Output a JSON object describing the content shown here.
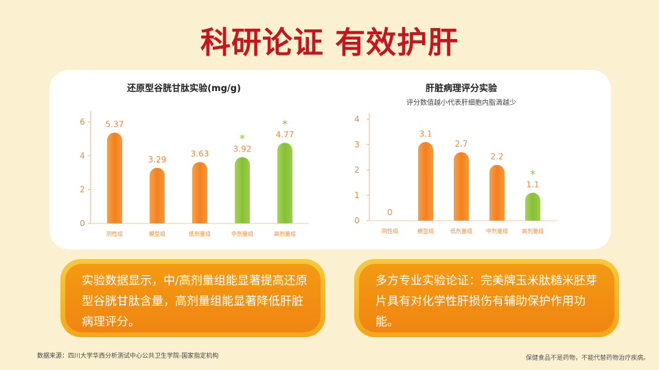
{
  "page": {
    "title": "科研论证 有效护肝",
    "note_left": "实验数据显示，中/高剂量组能显著提高还原型谷胱甘肽含量，高剂量组能显著降低肝脏病理评分。",
    "note_right": "多方专业实验论证：完美牌玉米肽糙米胚芽片具有对化学性肝损伤有辅助保护作用功能。",
    "footer_source": "数据来源：四川大学华西分析测试中心公共卫生学院-国家指定机构",
    "footer_disclaimer": "保健食品不是药物，不能代替药物治疗疾病。"
  },
  "chart_data": [
    {
      "type": "bar",
      "title": "还原型谷胱甘肽实验(mg/g)",
      "subtitle": "",
      "categories": [
        "阴性组",
        "模型组",
        "低剂量组",
        "中剂量组",
        "高剂量组"
      ],
      "values": [
        5.37,
        3.29,
        3.63,
        3.92,
        4.77
      ],
      "value_labels": [
        "5.37",
        "3.29",
        "3.63",
        "3.92",
        "4.77"
      ],
      "significant": [
        false,
        false,
        false,
        true,
        true
      ],
      "marker": "*",
      "yticks": [
        0,
        2,
        4,
        6
      ],
      "ylim": [
        0,
        6
      ],
      "colors": {
        "normal": "#f58a2d",
        "highlight": "#8cc63f"
      },
      "highlight": [
        false,
        false,
        false,
        true,
        true
      ]
    },
    {
      "type": "bar",
      "title": "肝脏病理评分实验",
      "subtitle": "评分数值越小代表肝细胞内脂滴越少",
      "categories": [
        "阴性组",
        "模型组",
        "低剂量组",
        "中剂量组",
        "高剂量组"
      ],
      "values": [
        0,
        3.1,
        2.7,
        2.2,
        1.1
      ],
      "value_labels": [
        "0",
        "3.1",
        "2.7",
        "2.2",
        "1.1"
      ],
      "significant": [
        false,
        false,
        false,
        false,
        true
      ],
      "marker": "*",
      "yticks": [
        0,
        1,
        2,
        3,
        4
      ],
      "ylim": [
        0,
        4
      ],
      "colors": {
        "normal": "#f58a2d",
        "highlight": "#8cc63f"
      },
      "highlight": [
        false,
        false,
        false,
        false,
        true
      ]
    }
  ]
}
